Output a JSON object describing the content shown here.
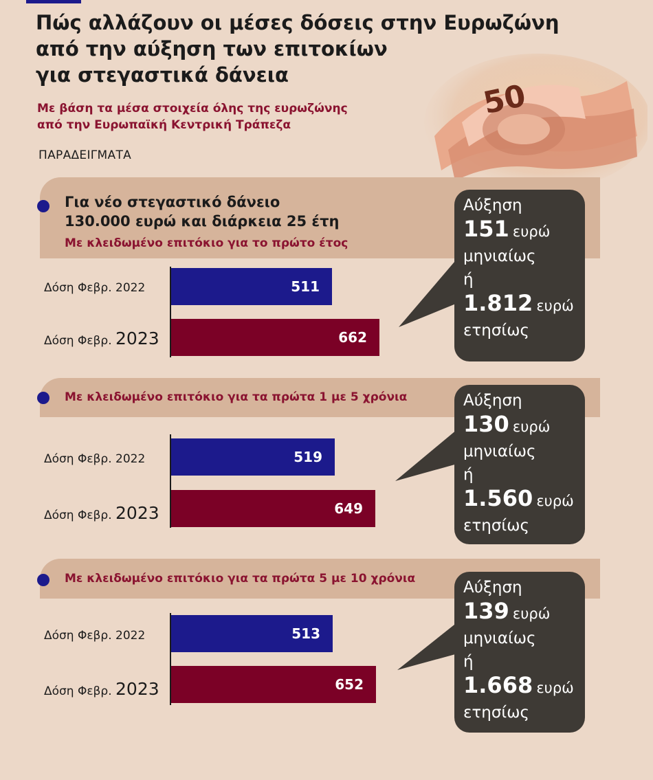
{
  "header": {
    "title": "Πώς αλλάζουν οι μέσες δόσεις στην Ευρωζώνη\nαπό την αύξηση των επιτοκίων\nγια στεγαστικά δάνεια",
    "subtitle": "Με βάση τα μέσα στοιχεία όλης της ευρωζώνης\nαπό την Ευρωπαϊκή Κεντρική Τράπεζα",
    "examples_label": "ΠΑΡΑΔΕΙΓΜΑΤΑ",
    "banknote_value": "50"
  },
  "colors": {
    "bar_2022": "#1c1a8c",
    "bar_2023": "#7b0126",
    "band": "#d6b49b",
    "callout": "#3e3a35",
    "accent_text": "#8a1330"
  },
  "labels": {
    "row_2022": "Δόση Φεβρ. 2022",
    "row_2023_prefix": "Δόση Φεβρ. ",
    "row_2023_year": "2023"
  },
  "chart_data": [
    {
      "type": "bar",
      "heading": "Για νέο στεγαστικό δάνειο\n 130.000 ευρώ και διάρκεια 25 έτη",
      "subheading": "Με κλειδωμένο επιτόκιο για το πρώτο έτος",
      "categories": [
        "Δόση Φεβρ. 2022",
        "Δόση Φεβρ. 2023"
      ],
      "values": [
        511,
        662
      ],
      "value_labels": [
        "511",
        "662"
      ],
      "callout": {
        "line1": "Αύξηση",
        "monthly_value": "151",
        "monthly_unit": "ευρώ",
        "monthly_word": "μηνιαίως",
        "or": "ή",
        "yearly_value": "1.812",
        "yearly_unit": "ευρώ",
        "yearly_word": "ετησίως"
      }
    },
    {
      "type": "bar",
      "heading": "",
      "subheading": "Με κλειδωμένο επιτόκιο για τα πρώτα 1 με 5 χρόνια",
      "categories": [
        "Δόση Φεβρ. 2022",
        "Δόση Φεβρ. 2023"
      ],
      "values": [
        519,
        649
      ],
      "value_labels": [
        "519",
        "649"
      ],
      "callout": {
        "line1": "Αύξηση",
        "monthly_value": "130",
        "monthly_unit": "ευρώ",
        "monthly_word": "μηνιαίως",
        "or": "ή",
        "yearly_value": "1.560",
        "yearly_unit": "ευρώ",
        "yearly_word": "ετησίως"
      }
    },
    {
      "type": "bar",
      "heading": "",
      "subheading": "Με κλειδωμένο επιτόκιο για τα πρώτα 5 με 10 χρόνια",
      "categories": [
        "Δόση Φεβρ. 2022",
        "Δόση Φεβρ. 2023"
      ],
      "values": [
        513,
        652
      ],
      "value_labels": [
        "513",
        "652"
      ],
      "callout": {
        "line1": "Αύξηση",
        "monthly_value": "139",
        "monthly_unit": "ευρώ",
        "monthly_word": "μηνιαίως",
        "or": "ή",
        "yearly_value": "1.668",
        "yearly_unit": "ευρώ",
        "yearly_word": "ετησίως"
      }
    }
  ]
}
